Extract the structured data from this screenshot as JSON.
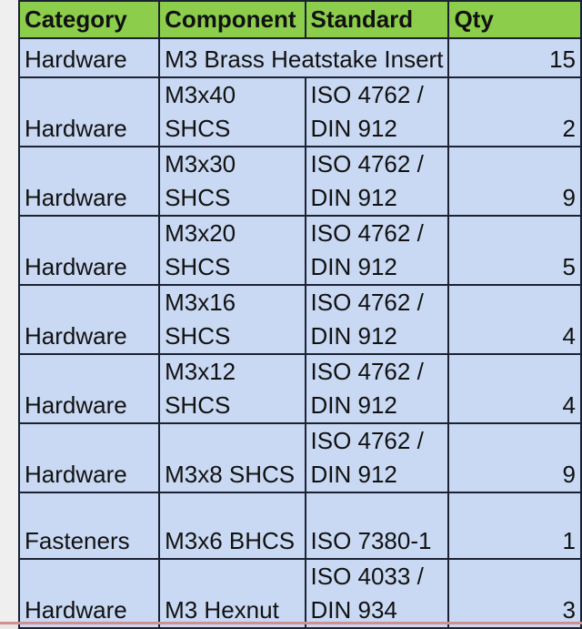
{
  "headers": [
    "Category",
    "Component",
    "Standard",
    "Qty"
  ],
  "rows": [
    {
      "category": "Hardware",
      "component": "M3 Brass Heatstake Insert",
      "standard": "",
      "qty": "15"
    },
    {
      "category": "Hardware",
      "component": "M3x40 SHCS",
      "standard": "ISO 4762 / DIN 912",
      "qty": "2"
    },
    {
      "category": "Hardware",
      "component": "M3x30 SHCS",
      "standard": "ISO 4762 / DIN 912",
      "qty": "9"
    },
    {
      "category": "Hardware",
      "component": "M3x20 SHCS",
      "standard": "ISO 4762 / DIN 912",
      "qty": "5"
    },
    {
      "category": "Hardware",
      "component": "M3x16 SHCS",
      "standard": "ISO 4762 / DIN 912",
      "qty": "4"
    },
    {
      "category": "Hardware",
      "component": "M3x12 SHCS",
      "standard": "ISO 4762 / DIN 912",
      "qty": "4"
    },
    {
      "category": "Hardware",
      "component": "M3x8 SHCS",
      "standard": "ISO 4762 / DIN 912",
      "qty": "9"
    },
    {
      "category": "Fasteners",
      "component": "M3x6 BHCS",
      "standard": "ISO 7380-1",
      "qty": "1"
    },
    {
      "category": "Hardware",
      "component": "M3 Hexnut",
      "standard": "ISO 4033 / DIN 934",
      "qty": "3"
    }
  ],
  "colors": {
    "header": "#8cce4c",
    "cell": "#c9d9f3"
  }
}
